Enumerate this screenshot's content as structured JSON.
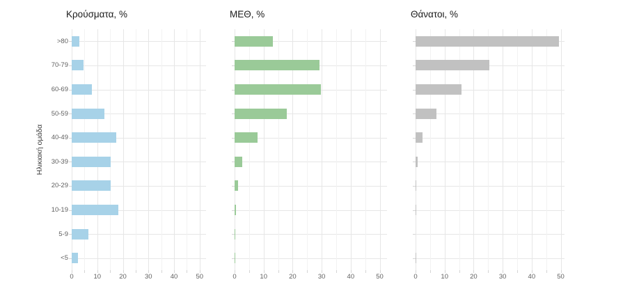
{
  "figure": {
    "y_axis_label": "Ηλικιακή ομάδα",
    "background": "#ffffff"
  },
  "axis": {
    "x_tick_labels": [
      "0",
      "10",
      "20",
      "30",
      "40",
      "50"
    ],
    "x_ticks": [
      0,
      10,
      20,
      30,
      40,
      50
    ],
    "x_minor_step": 5,
    "xlim": [
      0,
      52.5
    ]
  },
  "chart_data": [
    {
      "type": "bar",
      "orientation": "horizontal",
      "title": "Κρούσματα, %",
      "color": "#a7d2e8",
      "categories": [
        ">80",
        "70-79",
        "60-69",
        "50-59",
        "40-49",
        "30-39",
        "20-29",
        "10-19",
        "5-9",
        "<5"
      ],
      "values": [
        3.0,
        4.5,
        7.8,
        12.7,
        17.5,
        15.2,
        15.3,
        18.2,
        6.5,
        2.5
      ],
      "xlim": [
        0,
        52.5
      ],
      "x_ticks": [
        0,
        10,
        20,
        30,
        40,
        50
      ],
      "xlabel": "",
      "ylabel": "Ηλικιακή ομάδα",
      "grid": true,
      "legend": false
    },
    {
      "type": "bar",
      "orientation": "horizontal",
      "title": "ΜΕΘ, %",
      "color": "#9aca98",
      "categories": [
        ">80",
        "70-79",
        "60-69",
        "50-59",
        "40-49",
        "30-39",
        "20-29",
        "10-19",
        "5-9",
        "<5"
      ],
      "values": [
        13.3,
        29.3,
        29.8,
        18.0,
        7.8,
        2.6,
        1.1,
        0.5,
        0.3,
        0.3
      ],
      "xlim": [
        0,
        52.5
      ],
      "x_ticks": [
        0,
        10,
        20,
        30,
        40,
        50
      ],
      "xlabel": "",
      "ylabel": "",
      "grid": true,
      "legend": false
    },
    {
      "type": "bar",
      "orientation": "horizontal",
      "title": "Θάνατοι, %",
      "color": "#c1c1c1",
      "categories": [
        ">80",
        "70-79",
        "60-69",
        "50-59",
        "40-49",
        "30-39",
        "20-29",
        "10-19",
        "5-9",
        "<5"
      ],
      "values": [
        49.5,
        25.5,
        15.9,
        7.2,
        2.5,
        0.8,
        0.2,
        0.2,
        0.0,
        0.2
      ],
      "xlim": [
        0,
        52.5
      ],
      "x_ticks": [
        0,
        10,
        20,
        30,
        40,
        50
      ],
      "xlabel": "",
      "ylabel": "",
      "grid": true,
      "legend": false
    }
  ],
  "colors": {
    "grid_major": "#e6e6e6",
    "grid_minor": "#f2f2f2",
    "tick_mark": "#d4d4d4",
    "axis_text": "#606060",
    "title_text": "#1a1a1a"
  }
}
